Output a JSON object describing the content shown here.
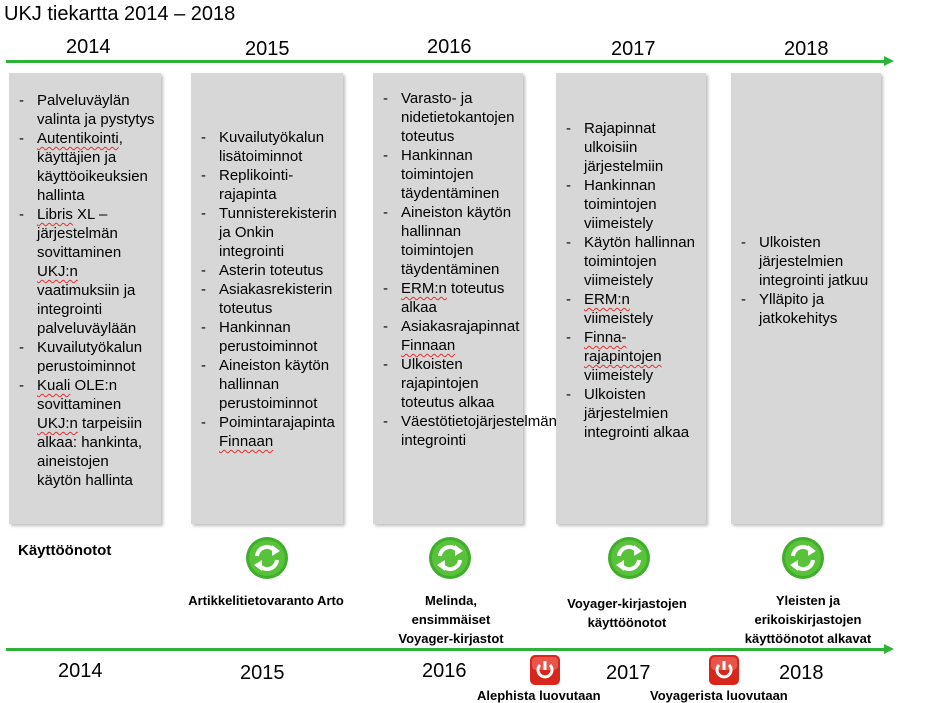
{
  "title": "UKJ tiekartta 2014 – 2018",
  "top_years": [
    "2014",
    "2015",
    "2016",
    "2017",
    "2018"
  ],
  "bottom_years": [
    "2014",
    "2015",
    "2016",
    "2017",
    "2018"
  ],
  "columns": [
    {
      "items": [
        "Palveluväylän valinta ja pystytys",
        "Autentikointi, käyttäjien ja käyttöoikeuksien hallinta",
        "Libris XL –järjestelmän sovittaminen UKJ:n vaatimuksiin ja integrointi palveluväylään",
        "Kuvailutyökalun perustoiminnot",
        "Kuali OLE:n sovittaminen UKJ:n tarpeisiin alkaa: hankinta, aineistojen käytön hallinta"
      ]
    },
    {
      "items": [
        "Kuvailutyökalun lisätoiminnot",
        "Replikointi-rajapinta",
        "Tunnisterekisterin ja Onkin integrointi",
        "Asterin toteutus",
        "Asiakasrekisterin toteutus",
        "Hankinnan perustoiminnot",
        "Aineiston käytön hallinnan perustoiminnot",
        "Poimintarajapinta Finnaan"
      ]
    },
    {
      "items": [
        "Varasto- ja nidetietokantojen toteutus",
        "Hankinnan toimintojen täydentäminen",
        "Aineiston käytön hallinnan toimintojen täydentäminen",
        "ERM:n toteutus alkaa",
        "Asiakasrajapinnat Finnaan",
        "Ulkoisten rajapintojen toteutus alkaa",
        "Väestötietojärjestelmän integrointi"
      ]
    },
    {
      "items": [
        "Rajapinnat ulkoisiin järjestelmiin",
        "Hankinnan toimintojen viimeistely",
        "Käytön hallinnan toimintojen viimeistely",
        "ERM:n viimeistely",
        "Finna-rajapintojen viimeistely",
        "Ulkoisten järjestelmien integrointi alkaa"
      ]
    },
    {
      "items": [
        "Ulkoisten järjestelmien integrointi jatkuu",
        "Ylläpito ja jatkokehitys"
      ]
    }
  ],
  "kayttoonotot_label": "Käyttöönotot",
  "deployments": [
    {
      "icon": "refresh-cycle-icon",
      "text": "Artikkelitietovaranto Arto"
    },
    {
      "icon": "refresh-cycle-icon",
      "text": "Melinda, ensimmäiset Voyager-kirjastot"
    },
    {
      "icon": "refresh-cycle-icon",
      "text": "Voyager-kirjastojen käyttöönotot"
    },
    {
      "icon": "refresh-cycle-icon",
      "text": "Yleisten ja erikoiskirjastojen käyttöönotot alkavat"
    }
  ],
  "retirements": [
    {
      "icon": "power-icon",
      "text": "Alephista luovutaan"
    },
    {
      "icon": "power-icon",
      "text": "Voyagerista luovutaan"
    }
  ],
  "colors": {
    "arrow": "#2eb339",
    "column_bg": "#d7d7d7",
    "cycle_green": "#3fae2a",
    "power_red": "#d9261c"
  }
}
